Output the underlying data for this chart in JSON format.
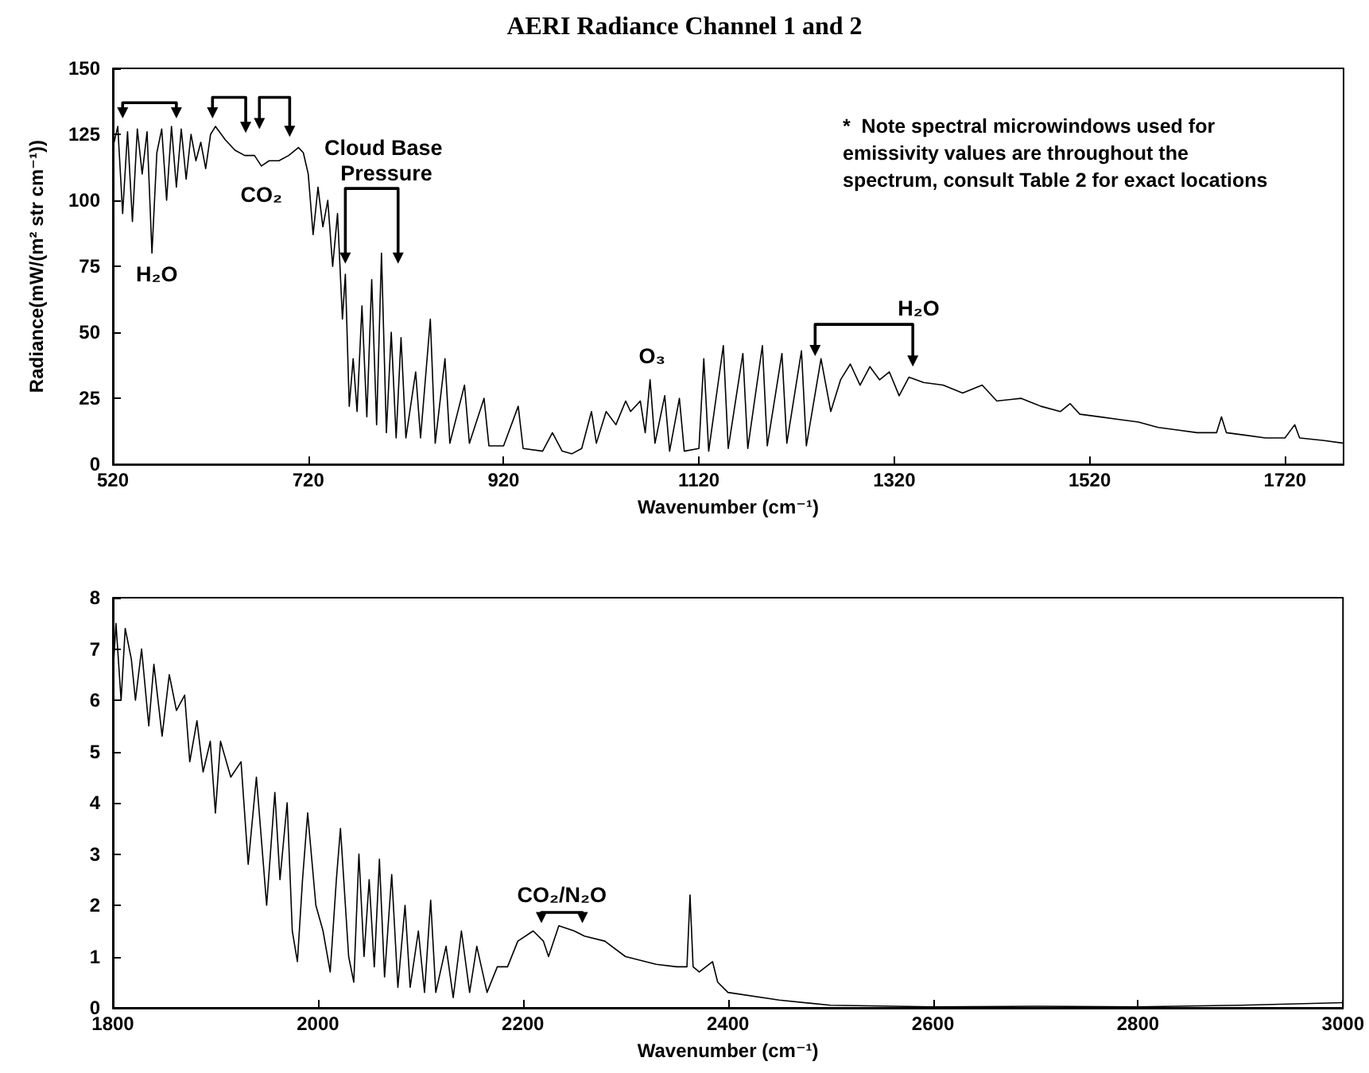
{
  "chart_data": [
    {
      "type": "line",
      "title": "AERI Radiance Channel 1 and 2",
      "xlabel": "Wavenumber (cm⁻¹)",
      "ylabel": "Radiance(mW/(m² str cm⁻¹))",
      "xlim": [
        520,
        1780
      ],
      "xticks": [
        520,
        720,
        920,
        1120,
        1320,
        1520,
        1720
      ],
      "ylim": [
        0,
        150
      ],
      "yticks": [
        0,
        25,
        50,
        75,
        100,
        125,
        150
      ],
      "grid": false,
      "marker": "none",
      "annotations": [
        "H₂O",
        "CO₂",
        "Cloud Base Pressure",
        "O₃",
        "H₂O",
        "*  Note spectral microwindows used for emissivity values are throughout the spectrum, consult Table 2 for exact locations"
      ],
      "series": [
        {
          "color": "#000000",
          "x": [
            520,
            525,
            530,
            535,
            540,
            545,
            550,
            555,
            560,
            565,
            570,
            575,
            580,
            585,
            590,
            595,
            600,
            605,
            610,
            615,
            620,
            625,
            635,
            645,
            655,
            665,
            672,
            680,
            690,
            700,
            710,
            715,
            720,
            725,
            730,
            735,
            740,
            745,
            750,
            755,
            758,
            762,
            766,
            770,
            775,
            780,
            785,
            790,
            795,
            800,
            805,
            810,
            815,
            820,
            830,
            835,
            845,
            850,
            860,
            865,
            880,
            885,
            900,
            905,
            920,
            935,
            940,
            960,
            970,
            980,
            990,
            1000,
            1010,
            1015,
            1025,
            1035,
            1045,
            1050,
            1060,
            1065,
            1070,
            1075,
            1085,
            1090,
            1100,
            1105,
            1120,
            1125,
            1130,
            1145,
            1150,
            1165,
            1170,
            1185,
            1190,
            1205,
            1210,
            1225,
            1230,
            1245,
            1255,
            1265,
            1275,
            1285,
            1295,
            1305,
            1315,
            1325,
            1335,
            1350,
            1370,
            1390,
            1410,
            1425,
            1450,
            1470,
            1490,
            1500,
            1510,
            1530,
            1550,
            1570,
            1590,
            1610,
            1630,
            1650,
            1655,
            1660,
            1680,
            1700,
            1720,
            1730,
            1735,
            1760,
            1780
          ],
          "values": [
            120,
            128,
            95,
            126,
            92,
            127,
            110,
            126,
            80,
            118,
            127,
            100,
            128,
            105,
            127,
            108,
            125,
            115,
            122,
            112,
            125,
            128,
            123,
            119,
            117,
            117,
            113,
            115,
            115,
            117,
            120,
            118,
            110,
            87,
            105,
            90,
            100,
            75,
            95,
            55,
            72,
            22,
            40,
            20,
            60,
            18,
            70,
            15,
            80,
            12,
            50,
            10,
            48,
            10,
            35,
            10,
            55,
            8,
            40,
            8,
            30,
            8,
            25,
            7,
            7,
            22,
            6,
            5,
            12,
            5,
            4,
            6,
            20,
            8,
            20,
            15,
            24,
            20,
            24,
            12,
            32,
            8,
            26,
            5,
            25,
            5,
            6,
            40,
            5,
            45,
            6,
            42,
            6,
            45,
            7,
            42,
            8,
            43,
            7,
            40,
            20,
            32,
            38,
            30,
            37,
            32,
            35,
            26,
            33,
            31,
            30,
            27,
            30,
            24,
            25,
            22,
            20,
            23,
            19,
            18,
            17,
            16,
            14,
            13,
            12,
            12,
            18,
            12,
            11,
            10,
            10,
            15,
            10,
            9,
            8
          ]
        }
      ]
    },
    {
      "type": "line",
      "xlabel": "Wavenumber (cm⁻¹)",
      "xlim": [
        1800,
        3000
      ],
      "xticks": [
        1800,
        2000,
        2200,
        2400,
        2600,
        2800,
        3000
      ],
      "ylim": [
        0,
        8
      ],
      "yticks": [
        0,
        1,
        2,
        3,
        4,
        5,
        6,
        7,
        8
      ],
      "grid": false,
      "marker": "none",
      "annotations": [
        "CO₂/N₂O"
      ],
      "series": [
        {
          "color": "#000000",
          "x": [
            1800,
            1803,
            1808,
            1812,
            1818,
            1822,
            1828,
            1835,
            1840,
            1848,
            1855,
            1862,
            1870,
            1875,
            1882,
            1888,
            1895,
            1900,
            1905,
            1915,
            1925,
            1932,
            1940,
            1950,
            1958,
            1963,
            1970,
            1975,
            1980,
            1985,
            1990,
            1998,
            2005,
            2012,
            2018,
            2022,
            2030,
            2035,
            2040,
            2045,
            2050,
            2055,
            2060,
            2065,
            2072,
            2078,
            2085,
            2090,
            2098,
            2104,
            2110,
            2115,
            2125,
            2132,
            2140,
            2148,
            2155,
            2165,
            2175,
            2185,
            2195,
            2210,
            2220,
            2225,
            2235,
            2250,
            2260,
            2280,
            2300,
            2330,
            2350,
            2360,
            2363,
            2366,
            2372,
            2385,
            2390,
            2400,
            2450,
            2500,
            2600,
            2700,
            2800,
            2900,
            3000
          ],
          "values": [
            6.5,
            7.5,
            6.0,
            7.4,
            6.8,
            6.0,
            7.0,
            5.5,
            6.7,
            5.3,
            6.5,
            5.8,
            6.1,
            4.8,
            5.6,
            4.6,
            5.2,
            3.8,
            5.2,
            4.5,
            4.8,
            2.8,
            4.5,
            2.0,
            4.2,
            2.5,
            4.0,
            1.5,
            0.9,
            2.5,
            3.8,
            2.0,
            1.5,
            0.7,
            2.5,
            3.5,
            1.0,
            0.5,
            3.0,
            1.0,
            2.5,
            0.8,
            2.9,
            0.6,
            2.6,
            0.4,
            2.0,
            0.4,
            1.5,
            0.3,
            2.1,
            0.3,
            1.2,
            0.2,
            1.5,
            0.3,
            1.2,
            0.3,
            0.8,
            0.8,
            1.3,
            1.5,
            1.3,
            1.0,
            1.6,
            1.5,
            1.4,
            1.3,
            1.0,
            0.85,
            0.8,
            0.8,
            2.2,
            0.8,
            0.7,
            0.9,
            0.5,
            0.3,
            0.15,
            0.05,
            0.02,
            0.03,
            0.02,
            0.05,
            0.1
          ]
        }
      ]
    }
  ]
}
